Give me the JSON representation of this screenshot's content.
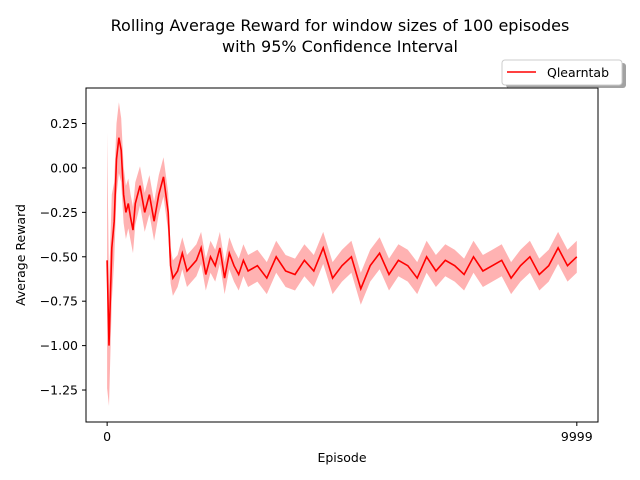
{
  "chart_data": {
    "type": "line",
    "title_line1": "Rolling Average Reward for window sizes of 100 episodes",
    "title_line2": "with 95% Confidence Interval",
    "xlabel": "Episode",
    "ylabel": "Average Reward",
    "xlim": [
      -450,
      10450
    ],
    "ylim": [
      -1.43,
      0.45
    ],
    "x_ticks": [
      0,
      9999
    ],
    "x_tick_labels": [
      "0",
      "9999"
    ],
    "y_ticks": [
      0.25,
      0.0,
      -0.25,
      -0.5,
      -0.75,
      -1.0,
      -1.25
    ],
    "y_tick_labels": [
      "0.25",
      "0.00",
      "−0.25",
      "−0.50",
      "−0.75",
      "−1.00",
      "−1.25"
    ],
    "legend_position": "upper right outside",
    "series": [
      {
        "name": "Qlearntab",
        "color": "#ff0000",
        "ci_color": "#ff0000",
        "ci_level": "95%",
        "x": [
          0,
          40,
          100,
          150,
          200,
          250,
          300,
          350,
          400,
          450,
          500,
          550,
          600,
          700,
          800,
          900,
          1000,
          1100,
          1200,
          1300,
          1350,
          1400,
          1500,
          1600,
          1700,
          1800,
          1900,
          2000,
          2100,
          2200,
          2300,
          2400,
          2500,
          2600,
          2700,
          2800,
          2900,
          3000,
          3200,
          3400,
          3600,
          3800,
          4000,
          4200,
          4400,
          4600,
          4800,
          5000,
          5200,
          5400,
          5600,
          5800,
          6000,
          6200,
          6400,
          6600,
          6800,
          7000,
          7200,
          7400,
          7600,
          7800,
          8000,
          8200,
          8400,
          8600,
          8800,
          9000,
          9200,
          9400,
          9600,
          9800,
          9999
        ],
        "y": [
          -0.52,
          -1.0,
          -0.45,
          -0.3,
          0.05,
          0.17,
          0.1,
          -0.15,
          -0.25,
          -0.2,
          -0.28,
          -0.35,
          -0.2,
          -0.1,
          -0.25,
          -0.15,
          -0.3,
          -0.15,
          -0.05,
          -0.25,
          -0.55,
          -0.62,
          -0.58,
          -0.48,
          -0.58,
          -0.55,
          -0.52,
          -0.45,
          -0.6,
          -0.5,
          -0.55,
          -0.45,
          -0.62,
          -0.48,
          -0.55,
          -0.6,
          -0.52,
          -0.58,
          -0.55,
          -0.62,
          -0.5,
          -0.58,
          -0.6,
          -0.52,
          -0.58,
          -0.45,
          -0.62,
          -0.55,
          -0.5,
          -0.68,
          -0.55,
          -0.48,
          -0.6,
          -0.52,
          -0.55,
          -0.62,
          -0.5,
          -0.58,
          -0.52,
          -0.55,
          -0.6,
          -0.5,
          -0.58,
          -0.55,
          -0.52,
          -0.62,
          -0.55,
          -0.5,
          -0.6,
          -0.55,
          -0.45,
          -0.55,
          -0.5
        ],
        "ci_halfwidth": [
          0.72,
          0.34,
          0.3,
          0.22,
          0.2,
          0.2,
          0.18,
          0.16,
          0.15,
          0.14,
          0.13,
          0.13,
          0.12,
          0.11,
          0.11,
          0.11,
          0.11,
          0.11,
          0.11,
          0.11,
          0.1,
          0.1,
          0.09,
          0.09,
          0.09,
          0.09,
          0.09,
          0.09,
          0.09,
          0.09,
          0.09,
          0.09,
          0.09,
          0.09,
          0.09,
          0.09,
          0.09,
          0.09,
          0.09,
          0.09,
          0.09,
          0.09,
          0.09,
          0.09,
          0.09,
          0.09,
          0.09,
          0.09,
          0.09,
          0.09,
          0.09,
          0.09,
          0.09,
          0.09,
          0.09,
          0.09,
          0.09,
          0.09,
          0.09,
          0.09,
          0.09,
          0.09,
          0.09,
          0.09,
          0.09,
          0.09,
          0.09,
          0.09,
          0.09,
          0.09,
          0.09,
          0.09,
          0.09
        ]
      }
    ]
  }
}
